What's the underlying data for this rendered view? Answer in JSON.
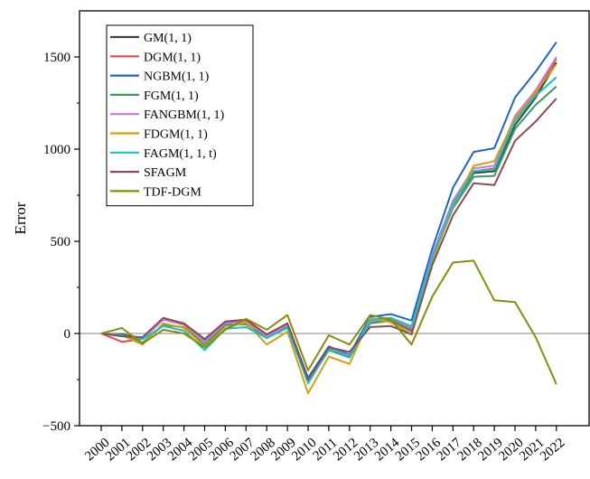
{
  "chart_data": {
    "type": "line",
    "title": "",
    "xlabel": "",
    "ylabel": "Error",
    "x": [
      "2000",
      "2001",
      "2002",
      "2003",
      "2004",
      "2005",
      "2006",
      "2007",
      "2008",
      "2009",
      "2010",
      "2011",
      "2012",
      "2013",
      "2014",
      "2015",
      "2016",
      "2017",
      "2018",
      "2019",
      "2020",
      "2021",
      "2022"
    ],
    "ylim": [
      -500,
      1750
    ],
    "yticks": [
      -500,
      0,
      500,
      1000,
      1500
    ],
    "ytick_labels": [
      "−500",
      "0",
      "500",
      "1000",
      "1500"
    ],
    "grid": false,
    "zero_line": true,
    "legend_position": "top-left",
    "series": [
      {
        "name": "GM(1, 1)",
        "color": "#404040",
        "values": [
          0,
          -5,
          -25,
          75,
          50,
          -35,
          55,
          65,
          -10,
          45,
          -255,
          -80,
          -115,
          60,
          80,
          20,
          420,
          700,
          870,
          880,
          1130,
          1280,
          1470
        ]
      },
      {
        "name": "DGM(1, 1)",
        "color": "#e8474c",
        "values": [
          0,
          -45,
          -30,
          75,
          50,
          -45,
          55,
          65,
          -15,
          45,
          -260,
          -85,
          -125,
          60,
          80,
          20,
          420,
          705,
          880,
          895,
          1155,
          1300,
          1490
        ]
      },
      {
        "name": "NGBM(1, 1)",
        "color": "#1f64c7",
        "values": [
          0,
          -10,
          -30,
          80,
          55,
          -40,
          60,
          70,
          -15,
          55,
          -240,
          -70,
          -115,
          90,
          105,
          70,
          460,
          790,
          985,
          1005,
          1280,
          1420,
          1580
        ]
      },
      {
        "name": "FGM(1, 1)",
        "color": "#3a9b5a",
        "values": [
          0,
          -10,
          -50,
          45,
          35,
          -60,
          45,
          50,
          -25,
          35,
          -265,
          -90,
          -130,
          55,
          70,
          10,
          400,
          680,
          850,
          855,
          1110,
          1240,
          1340
        ]
      },
      {
        "name": "FANGBM(1, 1)",
        "color": "#c27ed6",
        "values": [
          0,
          -10,
          -30,
          75,
          55,
          -45,
          55,
          65,
          -15,
          45,
          -255,
          -80,
          -120,
          65,
          85,
          30,
          430,
          720,
          895,
          910,
          1180,
          1320,
          1500
        ]
      },
      {
        "name": "FDGM(1, 1)",
        "color": "#d4a012",
        "values": [
          0,
          -10,
          -60,
          55,
          30,
          -70,
          30,
          60,
          -60,
          10,
          -325,
          -125,
          -165,
          85,
          60,
          -5,
          390,
          690,
          910,
          935,
          1165,
          1310,
          1460
        ]
      },
      {
        "name": "FAGM(1, 1, t)",
        "color": "#17c1c9",
        "values": [
          0,
          -10,
          -30,
          40,
          15,
          -90,
          25,
          35,
          -25,
          30,
          -270,
          -85,
          -125,
          75,
          85,
          40,
          410,
          700,
          880,
          890,
          1150,
          1290,
          1390
        ]
      },
      {
        "name": "SFAGM",
        "color": "#8b4c55",
        "values": [
          0,
          -15,
          -20,
          85,
          55,
          -30,
          65,
          75,
          -5,
          55,
          -250,
          -75,
          -100,
          35,
          40,
          -5,
          370,
          640,
          815,
          805,
          1045,
          1150,
          1275
        ]
      },
      {
        "name": "TDF-DGM",
        "color": "#8a8b0d",
        "values": [
          0,
          30,
          -55,
          20,
          0,
          -75,
          20,
          80,
          20,
          100,
          -200,
          -10,
          -60,
          100,
          75,
          -60,
          200,
          385,
          395,
          180,
          170,
          -20,
          -275
        ]
      }
    ]
  }
}
